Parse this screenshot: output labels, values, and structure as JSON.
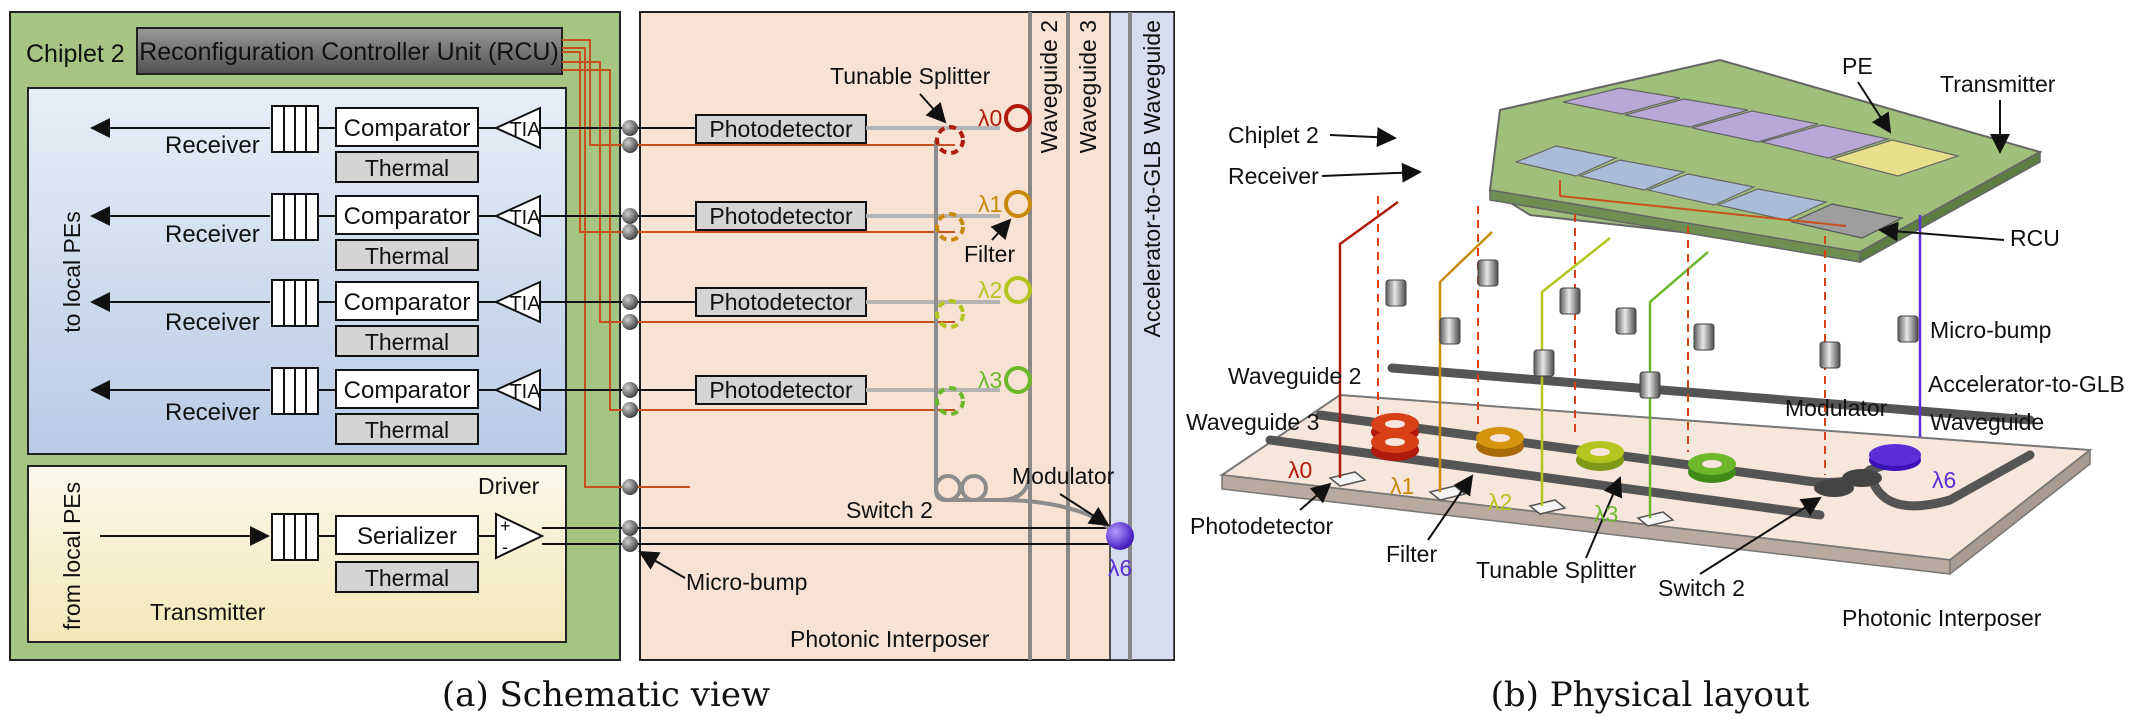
{
  "schematic": {
    "chiplet_label": "Chiplet 2",
    "rcu_label": "Reconfiguration Controller Unit (RCU)",
    "to_local_label": "to local PEs",
    "from_local_label": "from local PEs",
    "receiver_label": "Receiver",
    "comparator_label": "Comparator",
    "thermal_label": "Thermal",
    "tia_label": "TIA",
    "photodetector_label": "Photodetector",
    "tunable_splitter_label": "Tunable Splitter",
    "filter_label": "Filter",
    "lambdas": [
      "λ0",
      "λ1",
      "λ2",
      "λ3"
    ],
    "lambda6": "λ6",
    "waveguide2_label": "Waveguide 2",
    "waveguide3_label": "Waveguide 3",
    "glb_waveguide_label": "Accelerator-to-GLB Waveguide",
    "driver_label": "Driver",
    "serializer_label": "Serializer",
    "transmitter_label": "Transmitter",
    "plus": "+",
    "minus": "-",
    "switch_label": "Switch 2",
    "modulator_label": "Modulator",
    "microbump_label": "Micro-bump",
    "interposer_label": "Photonic Interposer",
    "caption": "(a) Schematic view"
  },
  "physical": {
    "chiplet_label": "Chiplet 2",
    "receiver_label": "Receiver",
    "pe_label": "PE",
    "transmitter_label": "Transmitter",
    "rcu_label": "RCU",
    "microbump_label": "Micro-bump",
    "waveguide2_label": "Waveguide 2",
    "waveguide3_label": "Waveguide 3",
    "modulator_label": "Modulator",
    "glb_label_line1": "Accelerator-to-GLB",
    "glb_label_line2": "Waveguide",
    "photodetector_label": "Photodetector",
    "filter_label": "Filter",
    "tunable_splitter_label": "Tunable Splitter",
    "switch_label": "Switch 2",
    "interposer_label": "Photonic Interposer",
    "lambdas": [
      "λ0",
      "λ1",
      "λ2",
      "λ3"
    ],
    "lambda6": "λ6",
    "caption": "(b) Physical layout"
  },
  "colors": {
    "lambda0": "#b01a0a",
    "lambda1": "#c98a0a",
    "lambda2": "#b5c520",
    "lambda3": "#6cb82a",
    "lambda6": "#5b2fd6",
    "electrical": "#c8501e",
    "chiplet_green": "#9fbf7a",
    "interposer": "#f6e3d6"
  }
}
